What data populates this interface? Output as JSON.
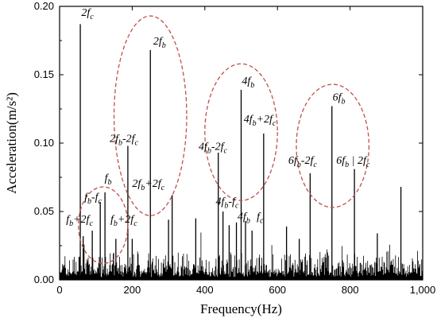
{
  "chart_data": {
    "type": "line",
    "xlabel": "Frequency(Hz)",
    "ylabel": "Acceleration(m/s²)",
    "xlim": [
      0,
      1000
    ],
    "ylim": [
      0,
      0.2
    ],
    "x_ticks": [
      0,
      200,
      400,
      600,
      800,
      1000
    ],
    "x_tick_labels": [
      "0",
      "200",
      "400",
      "600",
      "800",
      "1,000"
    ],
    "y_ticks": [
      0.0,
      0.05,
      0.1,
      0.15,
      0.2
    ],
    "y_tick_labels": [
      "0.00",
      "0.05",
      "0.10",
      "0.15",
      "0.20"
    ],
    "grid": false,
    "line_color": "#000000",
    "ellipse_color": "#c0504d",
    "peaks": [
      {
        "x": 57,
        "y": 0.187
      },
      {
        "x": 65,
        "y": 0.032
      },
      {
        "x": 90,
        "y": 0.036
      },
      {
        "x": 112,
        "y": 0.057
      },
      {
        "x": 125,
        "y": 0.064
      },
      {
        "x": 155,
        "y": 0.03
      },
      {
        "x": 188,
        "y": 0.098
      },
      {
        "x": 200,
        "y": 0.03
      },
      {
        "x": 250,
        "y": 0.168
      },
      {
        "x": 300,
        "y": 0.044
      },
      {
        "x": 310,
        "y": 0.062
      },
      {
        "x": 375,
        "y": 0.045
      },
      {
        "x": 437,
        "y": 0.093
      },
      {
        "x": 450,
        "y": 0.05
      },
      {
        "x": 467,
        "y": 0.04
      },
      {
        "x": 487,
        "y": 0.042
      },
      {
        "x": 500,
        "y": 0.139
      },
      {
        "x": 512,
        "y": 0.043
      },
      {
        "x": 530,
        "y": 0.036
      },
      {
        "x": 562,
        "y": 0.107
      },
      {
        "x": 625,
        "y": 0.039
      },
      {
        "x": 660,
        "y": 0.03
      },
      {
        "x": 690,
        "y": 0.078
      },
      {
        "x": 750,
        "y": 0.127
      },
      {
        "x": 812,
        "y": 0.081
      },
      {
        "x": 875,
        "y": 0.034
      },
      {
        "x": 940,
        "y": 0.068
      }
    ],
    "annotations": [
      {
        "base": "2f",
        "sub1": "c",
        "op": "",
        "base2": "",
        "sub2": "",
        "x": 60,
        "y": 0.193
      },
      {
        "base": "2f",
        "sub1": "b",
        "op": "",
        "base2": "",
        "sub2": "",
        "x": 258,
        "y": 0.172
      },
      {
        "base": "4f",
        "sub1": "b",
        "op": "",
        "base2": "",
        "sub2": "",
        "x": 502,
        "y": 0.143
      },
      {
        "base": "6f",
        "sub1": "b",
        "op": "",
        "base2": "",
        "sub2": "",
        "x": 752,
        "y": 0.131
      },
      {
        "base": "4f",
        "sub1": "b",
        "op": "+2f",
        "base2": "",
        "sub2": "c",
        "x": 507,
        "y": 0.115
      },
      {
        "base": "2f",
        "sub1": "b",
        "op": "-2f",
        "base2": "",
        "sub2": "c",
        "x": 138,
        "y": 0.101
      },
      {
        "base": "4f",
        "sub1": "b",
        "op": "-2f",
        "base2": "",
        "sub2": "c",
        "x": 383,
        "y": 0.095
      },
      {
        "base": "6f",
        "sub1": "b",
        "op": "-2f",
        "base2": "",
        "sub2": "c",
        "x": 630,
        "y": 0.085
      },
      {
        "base": "6f",
        "sub1": "b",
        "op": " | 2f",
        "base2": "",
        "sub2": "c",
        "x": 762,
        "y": 0.085
      },
      {
        "base": "f",
        "sub1": "b",
        "op": "",
        "base2": "",
        "sub2": "",
        "x": 124,
        "y": 0.072
      },
      {
        "base": "2f",
        "sub1": "b",
        "op": "+2f",
        "base2": "",
        "sub2": "c",
        "x": 200,
        "y": 0.068
      },
      {
        "base": "f",
        "sub1": "b",
        "op": "-f",
        "base2": "",
        "sub2": "c",
        "x": 68,
        "y": 0.058
      },
      {
        "base": "4f",
        "sub1": "b",
        "op": "-f",
        "base2": "",
        "sub2": "c",
        "x": 430,
        "y": 0.055
      },
      {
        "base": "4f",
        "sub1": "b",
        "op": "",
        "base2": "",
        "sub2": "",
        "x": 490,
        "y": 0.044
      },
      {
        "base": "f",
        "sub1": "c",
        "op": "",
        "base2": "",
        "sub2": "",
        "x": 543,
        "y": 0.044
      },
      {
        "base": "f",
        "sub1": "b",
        "op": "+2f",
        "base2": "",
        "sub2": "c",
        "x": 18,
        "y": 0.042
      },
      {
        "base": "f",
        "sub1": "b",
        "op": "+2f",
        "base2": "",
        "sub2": "c",
        "x": 140,
        "y": 0.042
      }
    ],
    "ellipses": [
      {
        "cx": 120,
        "cy": 0.04,
        "rx": 68,
        "ry": 0.028
      },
      {
        "cx": 250,
        "cy": 0.12,
        "rx": 100,
        "ry": 0.073
      },
      {
        "cx": 500,
        "cy": 0.108,
        "rx": 100,
        "ry": 0.05
      },
      {
        "cx": 752,
        "cy": 0.098,
        "rx": 100,
        "ry": 0.045
      }
    ]
  }
}
